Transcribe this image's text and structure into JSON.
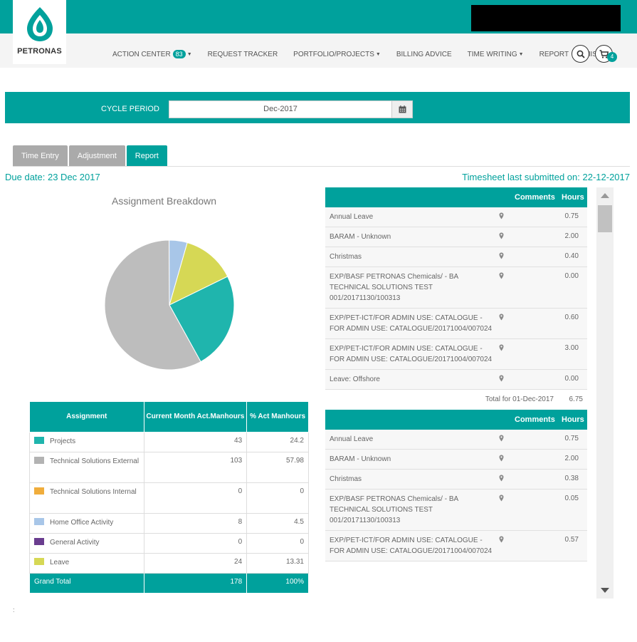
{
  "brand": {
    "name": "PETRONAS",
    "primary_color": "#00a19c"
  },
  "nav": {
    "items": [
      {
        "label": "ACTION CENTER",
        "badge": "83",
        "dropdown": true
      },
      {
        "label": "REQUEST TRACKER",
        "dropdown": false
      },
      {
        "label": "PORTFOLIO/PROJECTS",
        "dropdown": true
      },
      {
        "label": "BILLING ADVICE",
        "dropdown": false
      },
      {
        "label": "TIME WRITING",
        "dropdown": true
      },
      {
        "label": "REPORT",
        "dropdown": false
      },
      {
        "label": "MISC",
        "dropdown": true
      }
    ],
    "cart_count": "4",
    "icons": [
      "search-icon",
      "cart-icon"
    ]
  },
  "cycle": {
    "label": "CYCLE PERIOD",
    "value": "Dec-2017"
  },
  "tabs": [
    {
      "label": "Time Entry",
      "active": false
    },
    {
      "label": "Adjustment",
      "active": false
    },
    {
      "label": "Report",
      "active": true
    }
  ],
  "due_date": "Due date: 23 Dec 2017",
  "last_submitted": "Timesheet last submitted on: 22-12-2017",
  "chart_data": {
    "type": "pie",
    "title": "Assignment Breakdown",
    "categories": [
      "Projects",
      "Technical Solutions External",
      "Technical Solutions Internal",
      "Home Office Activity",
      "General Activity",
      "Leave"
    ],
    "values": [
      24.2,
      57.98,
      0,
      4.5,
      0,
      13.31
    ],
    "colors": [
      "#1fb5ad",
      "#bdbdbd",
      "#f0ad3c",
      "#a8c6e8",
      "#6a3d8f",
      "#d6d855"
    ]
  },
  "assignment_table": {
    "headers": [
      "Assignment",
      "Current Month Act.Manhours",
      "% Act Manhours"
    ],
    "rows": [
      {
        "name": "Projects",
        "hours": "43",
        "pct": "24.2",
        "color": "#1fb5ad"
      },
      {
        "name": "Technical Solutions External",
        "hours": "103",
        "pct": "57.98",
        "color": "#b3b3b3"
      },
      {
        "name": "Technical Solutions Internal",
        "hours": "0",
        "pct": "0",
        "color": "#f0ad3c"
      },
      {
        "name": "Home Office Activity",
        "hours": "8",
        "pct": "4.5",
        "color": "#a8c6e8"
      },
      {
        "name": "General Activity",
        "hours": "0",
        "pct": "0",
        "color": "#6a3d8f"
      },
      {
        "name": "Leave",
        "hours": "24",
        "pct": "13.31",
        "color": "#d6d855"
      }
    ],
    "total": {
      "name": "Grand Total",
      "hours": "178",
      "pct": "100%"
    }
  },
  "timesheet": {
    "col_comments": "Comments",
    "col_hours": "Hours",
    "group1": {
      "rows": [
        {
          "name": "Annual Leave",
          "hours": "0.75"
        },
        {
          "name": "BARAM - Unknown",
          "hours": "2.00"
        },
        {
          "name": "Christmas",
          "hours": "0.40"
        },
        {
          "name": "EXP/BASF PETRONAS Chemicals/ - BA TECHNICAL SOLUTIONS TEST 001/20171130/100313",
          "hours": "0.00"
        },
        {
          "name": "EXP/PET-ICT/FOR ADMIN USE: CATALOGUE - FOR ADMIN USE: CATALOGUE/20171004/007024",
          "hours": "0.60"
        },
        {
          "name": "EXP/PET-ICT/FOR ADMIN USE: CATALOGUE - FOR ADMIN USE: CATALOGUE/20171004/007024",
          "hours": "3.00"
        },
        {
          "name": "Leave: Offshore",
          "hours": "0.00"
        }
      ],
      "total_label": "Total for 01-Dec-2017",
      "total_value": "6.75"
    },
    "group2": {
      "rows": [
        {
          "name": "Annual Leave",
          "hours": "0.75"
        },
        {
          "name": "BARAM - Unknown",
          "hours": "2.00"
        },
        {
          "name": "Christmas",
          "hours": "0.38"
        },
        {
          "name": "EXP/BASF PETRONAS Chemicals/ - BA TECHNICAL SOLUTIONS TEST 001/20171130/100313",
          "hours": "0.05"
        },
        {
          "name": "EXP/PET-ICT/FOR ADMIN USE: CATALOGUE - FOR ADMIN USE: CATALOGUE/20171004/007024",
          "hours": "0.57"
        }
      ]
    }
  }
}
